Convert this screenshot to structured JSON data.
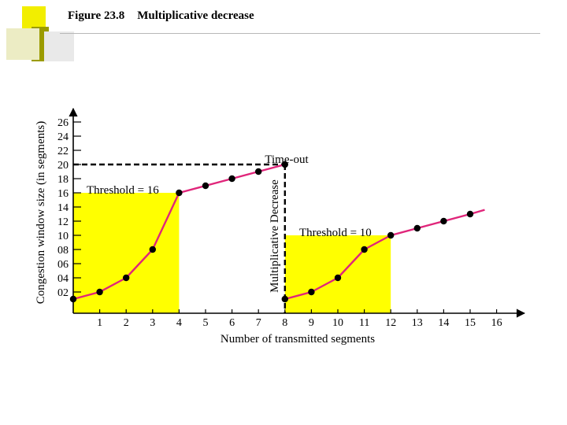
{
  "slide": {
    "figure_label": "Figure 23.8",
    "title": "Multiplicative decrease"
  },
  "chart_data": {
    "type": "line",
    "xlabel": "Number of transmitted segments",
    "ylabel": "Congestion window size (in segments)",
    "x_ticks": [
      "1",
      "2",
      "3",
      "4",
      "5",
      "6",
      "7",
      "8",
      "9",
      "10",
      "11",
      "12",
      "13",
      "14",
      "15",
      "16"
    ],
    "y_ticks": [
      "02",
      "04",
      "06",
      "08",
      "10",
      "12",
      "14",
      "16",
      "18",
      "20",
      "22",
      "24",
      "26"
    ],
    "xlim": [
      0,
      16
    ],
    "ylim": [
      0,
      26
    ],
    "series": [
      {
        "x": [
          0,
          1,
          2,
          3,
          4,
          5,
          6,
          7,
          8
        ],
        "y": [
          1,
          2,
          4,
          8,
          16,
          17,
          18,
          19,
          20
        ],
        "point_x": [
          0,
          1,
          2,
          3,
          4,
          5,
          6,
          7,
          8
        ]
      },
      {
        "x": [
          8,
          9,
          10,
          11,
          12,
          13,
          14,
          15,
          15.55
        ],
        "y": [
          1,
          2,
          4,
          8,
          10,
          11,
          12,
          13,
          13.6
        ],
        "point_x": [
          8,
          9,
          10,
          11,
          12,
          13,
          14,
          15
        ]
      }
    ],
    "threshold_regions": [
      {
        "label": "Threshold = 16",
        "x": [
          0,
          4
        ],
        "y": 16
      },
      {
        "label": "Threshold = 10",
        "x": [
          8,
          12
        ],
        "y": 10
      }
    ],
    "timeout": {
      "label": "Time-out",
      "x": 8,
      "y": 20
    },
    "decrease_label": "Multiplicative Decrease",
    "colors": {
      "line": "#e0257a",
      "region": "#ffff00",
      "marker": "#000000",
      "axis": "#000000"
    }
  }
}
